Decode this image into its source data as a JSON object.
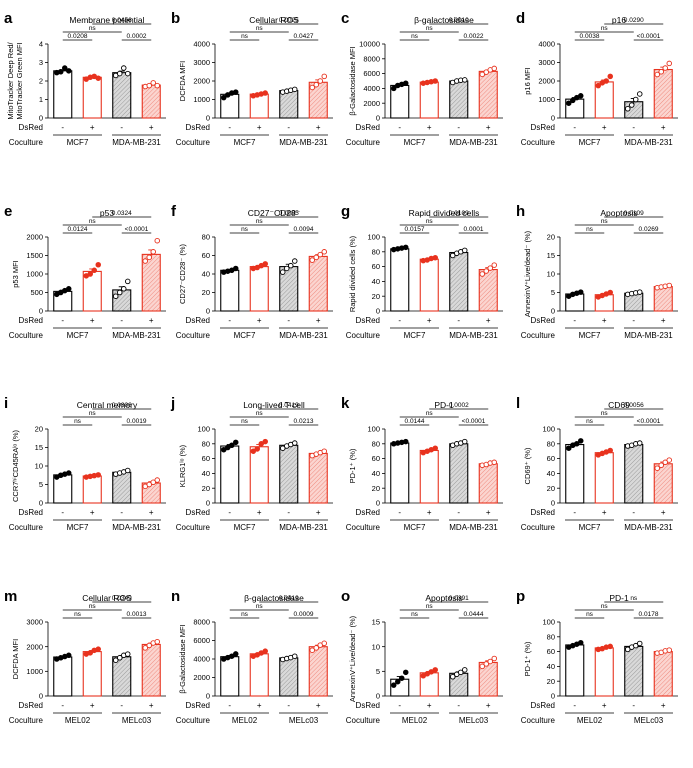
{
  "colors": {
    "black": "#000000",
    "red": "#e8321e",
    "grey_fill": "#dcdcdc",
    "red_fill": "#f7c6c0"
  },
  "row_labels": {
    "dsred": "DsRed",
    "coculture": "Coculture",
    "minus": "-",
    "plus": "+"
  },
  "chart_data": [
    {
      "panel": "a",
      "type": "bar",
      "title": "Membrane potential",
      "ylabel_lines": [
        "MitoTracker Deep Red/",
        "MitoTracker Green MFI"
      ],
      "ylim": [
        0,
        4
      ],
      "yticks": [
        "0",
        "1",
        "2",
        "3",
        "4"
      ],
      "cells": [
        "MCF7",
        "MDA-MB-231"
      ],
      "values": [
        2.55,
        2.2,
        2.45,
        1.78
      ],
      "points": [
        [
          2.45,
          2.5,
          2.7,
          2.55
        ],
        [
          2.1,
          2.2,
          2.25,
          2.15
        ],
        [
          2.3,
          2.4,
          2.7,
          2.4
        ],
        [
          1.7,
          1.75,
          1.9,
          1.75
        ]
      ],
      "sig": [
        {
          "a": 0,
          "b": 1,
          "text": "0.0208"
        },
        {
          "a": 2,
          "b": 3,
          "text": "0.0002"
        },
        {
          "a": 0,
          "b": 2,
          "text": "ns"
        },
        {
          "a": 1,
          "b": 3,
          "text": "0.0456"
        }
      ]
    },
    {
      "panel": "b",
      "type": "bar",
      "title": "Cellular ROS",
      "ylabel_lines": [
        "DCFDA  MFI"
      ],
      "ylim": [
        0,
        4000
      ],
      "yticks": [
        "0",
        "1000",
        "2000",
        "3000",
        "4000"
      ],
      "cells": [
        "MCF7",
        "MDA-MB-231"
      ],
      "values": [
        1280,
        1290,
        1480,
        1930
      ],
      "points": [
        [
          1100,
          1250,
          1350,
          1400
        ],
        [
          1200,
          1250,
          1300,
          1350
        ],
        [
          1400,
          1450,
          1500,
          1550
        ],
        [
          1650,
          1800,
          2000,
          2250
        ]
      ],
      "sig": [
        {
          "a": 0,
          "b": 1,
          "text": "ns"
        },
        {
          "a": 2,
          "b": 3,
          "text": "0.0427"
        },
        {
          "a": 0,
          "b": 2,
          "text": "ns"
        },
        {
          "a": 1,
          "b": 3,
          "text": "0.0025"
        }
      ]
    },
    {
      "panel": "c",
      "type": "bar",
      "title": "β-galactosidase",
      "ylabel_lines": [
        "β-Galactosidase  MFI"
      ],
      "ylim": [
        0,
        10000
      ],
      "yticks": [
        "0",
        "2000",
        "4000",
        "6000",
        "8000",
        "10000"
      ],
      "cells": [
        "MCF7",
        "MDA-MB-231"
      ],
      "values": [
        4400,
        4850,
        5000,
        6300
      ],
      "points": [
        [
          4000,
          4400,
          4550,
          4700
        ],
        [
          4700,
          4800,
          4900,
          5000
        ],
        [
          4800,
          5000,
          5100,
          5150
        ],
        [
          5900,
          6200,
          6500,
          6700
        ]
      ],
      "sig": [
        {
          "a": 0,
          "b": 1,
          "text": "ns"
        },
        {
          "a": 2,
          "b": 3,
          "text": "0.0022"
        },
        {
          "a": 0,
          "b": 2,
          "text": "ns"
        },
        {
          "a": 1,
          "b": 3,
          "text": "0.0010"
        }
      ]
    },
    {
      "panel": "d",
      "type": "bar",
      "title": "p16",
      "ylabel_lines": [
        "p16  MFI"
      ],
      "ylim": [
        0,
        4000
      ],
      "yticks": [
        "0",
        "1000",
        "2000",
        "3000",
        "4000"
      ],
      "cells": [
        "MCF7",
        "MDA-MB-231"
      ],
      "values": [
        1020,
        1950,
        880,
        2620
      ],
      "points": [
        [
          800,
          950,
          1100,
          1200
        ],
        [
          1750,
          1900,
          2000,
          2250
        ],
        [
          500,
          700,
          1000,
          1300
        ],
        [
          2350,
          2500,
          2700,
          2950
        ]
      ],
      "sig": [
        {
          "a": 0,
          "b": 1,
          "text": "0.0038"
        },
        {
          "a": 2,
          "b": 3,
          "text": "<0.0001"
        },
        {
          "a": 0,
          "b": 2,
          "text": "ns"
        },
        {
          "a": 1,
          "b": 3,
          "text": "0.0290"
        }
      ]
    },
    {
      "panel": "e",
      "type": "bar",
      "title": "p53",
      "ylabel_lines": [
        "p53  MFI"
      ],
      "ylim": [
        0,
        2000
      ],
      "yticks": [
        "0",
        "500",
        "1000",
        "1500",
        "2000"
      ],
      "cells": [
        "MCF7",
        "MDA-MB-231"
      ],
      "values": [
        530,
        1070,
        570,
        1530
      ],
      "points": [
        [
          450,
          500,
          550,
          600
        ],
        [
          950,
          1000,
          1100,
          1250
        ],
        [
          400,
          500,
          600,
          800
        ],
        [
          1350,
          1450,
          1600,
          1900
        ]
      ],
      "sig": [
        {
          "a": 0,
          "b": 1,
          "text": "0.0124"
        },
        {
          "a": 2,
          "b": 3,
          "text": "<0.0001"
        },
        {
          "a": 0,
          "b": 2,
          "text": "ns"
        },
        {
          "a": 1,
          "b": 3,
          "text": "0.0324"
        }
      ]
    },
    {
      "panel": "f",
      "type": "bar",
      "title": "CD27⁻CD28⁻",
      "ylabel_lines": [
        "CD27⁻CD28⁻ (%)"
      ],
      "ylim": [
        0,
        80
      ],
      "yticks": [
        "0",
        "20",
        "40",
        "60",
        "80"
      ],
      "cells": [
        "MCF7",
        "MDA-MB-231"
      ],
      "values": [
        44,
        48,
        48,
        59
      ],
      "points": [
        [
          42,
          43,
          44,
          46
        ],
        [
          46,
          47,
          49,
          51
        ],
        [
          42,
          46,
          49,
          54
        ],
        [
          55,
          58,
          61,
          64
        ]
      ],
      "sig": [
        {
          "a": 0,
          "b": 1,
          "text": "ns"
        },
        {
          "a": 2,
          "b": 3,
          "text": "0.0094"
        },
        {
          "a": 0,
          "b": 2,
          "text": "ns"
        },
        {
          "a": 1,
          "b": 3,
          "text": "0.0095"
        }
      ]
    },
    {
      "panel": "g",
      "type": "bar",
      "title": "Rapid divided cells",
      "ylabel_lines": [
        "Rapid divided cells (%)"
      ],
      "ylim": [
        0,
        100
      ],
      "yticks": [
        "0",
        "20",
        "40",
        "60",
        "80",
        "100"
      ],
      "cells": [
        "MCF7",
        "MDA-MB-231"
      ],
      "values": [
        84,
        70,
        79,
        56
      ],
      "points": [
        [
          83,
          84,
          85,
          86
        ],
        [
          68,
          69,
          71,
          72
        ],
        [
          75,
          78,
          80,
          82
        ],
        [
          50,
          54,
          58,
          62
        ]
      ],
      "sig": [
        {
          "a": 0,
          "b": 1,
          "text": "0.0157"
        },
        {
          "a": 2,
          "b": 3,
          "text": "0.0001"
        },
        {
          "a": 0,
          "b": 2,
          "text": "ns"
        },
        {
          "a": 1,
          "b": 3,
          "text": "0.0109"
        }
      ]
    },
    {
      "panel": "h",
      "type": "bar",
      "title": "Apoptosis",
      "ylabel_lines": [
        "AnnexinV⁺Live/dead⁻ (%)"
      ],
      "ylim": [
        0,
        20
      ],
      "yticks": [
        "0",
        "5",
        "10",
        "15",
        "20"
      ],
      "cells": [
        "MCF7",
        "MDA-MB-231"
      ],
      "values": [
        4.6,
        4.4,
        4.8,
        6.6
      ],
      "points": [
        [
          4.0,
          4.5,
          4.8,
          5.1
        ],
        [
          3.8,
          4.2,
          4.6,
          5.0
        ],
        [
          4.5,
          4.7,
          4.9,
          5.1
        ],
        [
          6.3,
          6.5,
          6.7,
          6.9
        ]
      ],
      "sig": [
        {
          "a": 0,
          "b": 1,
          "text": "ns"
        },
        {
          "a": 2,
          "b": 3,
          "text": "0.0269"
        },
        {
          "a": 0,
          "b": 2,
          "text": "ns"
        },
        {
          "a": 1,
          "b": 3,
          "text": "0.0109"
        }
      ]
    },
    {
      "panel": "i",
      "type": "bar",
      "title": "Central memory",
      "ylabel_lines": [
        "CCR7ʰⁱCD45RAˡᵒ (%)"
      ],
      "ylim": [
        0,
        20
      ],
      "yticks": [
        "0",
        "5",
        "10",
        "15",
        "20"
      ],
      "cells": [
        "MCF7",
        "MDA-MB-231"
      ],
      "values": [
        7.6,
        7.3,
        8.3,
        5.4
      ],
      "points": [
        [
          7.0,
          7.5,
          7.8,
          8.1
        ],
        [
          7.0,
          7.2,
          7.4,
          7.6
        ],
        [
          7.8,
          8.1,
          8.4,
          8.8
        ],
        [
          4.5,
          5.0,
          5.6,
          6.2
        ]
      ],
      "sig": [
        {
          "a": 0,
          "b": 1,
          "text": "ns"
        },
        {
          "a": 2,
          "b": 3,
          "text": "0.0019"
        },
        {
          "a": 0,
          "b": 2,
          "text": "ns"
        },
        {
          "a": 1,
          "b": 3,
          "text": "0.0306"
        }
      ]
    },
    {
      "panel": "j",
      "type": "bar",
      "title": "Long-lived T cell",
      "ylabel_lines": [
        "KLRG1ˡᵒ (%)"
      ],
      "ylim": [
        0,
        100
      ],
      "yticks": [
        "0",
        "20",
        "40",
        "60",
        "80",
        "100"
      ],
      "cells": [
        "MCF7",
        "MDA-MB-231"
      ],
      "values": [
        77,
        76,
        78,
        67
      ],
      "points": [
        [
          72,
          75,
          78,
          82
        ],
        [
          70,
          73,
          80,
          83
        ],
        [
          74,
          77,
          79,
          81
        ],
        [
          64,
          66,
          68,
          70
        ]
      ],
      "sig": [
        {
          "a": 0,
          "b": 1,
          "text": "ns"
        },
        {
          "a": 2,
          "b": 3,
          "text": "0.0213"
        },
        {
          "a": 0,
          "b": 2,
          "text": "ns"
        },
        {
          "a": 1,
          "b": 3,
          "text": "0.0419"
        }
      ]
    },
    {
      "panel": "k",
      "type": "bar",
      "title": "PD-1",
      "ylabel_lines": [
        "PD-1⁺ (%)"
      ],
      "ylim": [
        0,
        100
      ],
      "yticks": [
        "0",
        "20",
        "40",
        "60",
        "80",
        "100"
      ],
      "cells": [
        "MCF7",
        "MDA-MB-231"
      ],
      "values": [
        81,
        71,
        80,
        53
      ],
      "points": [
        [
          80,
          81,
          82,
          83
        ],
        [
          68,
          70,
          72,
          74
        ],
        [
          78,
          80,
          81,
          83
        ],
        [
          51,
          52,
          54,
          55
        ]
      ],
      "sig": [
        {
          "a": 0,
          "b": 1,
          "text": "0.0144"
        },
        {
          "a": 2,
          "b": 3,
          "text": "<0.0001"
        },
        {
          "a": 0,
          "b": 2,
          "text": "ns"
        },
        {
          "a": 1,
          "b": 3,
          "text": "0.0002"
        }
      ]
    },
    {
      "panel": "l",
      "type": "bar",
      "title": "CD69",
      "ylabel_lines": [
        "CD69⁺ (%)"
      ],
      "ylim": [
        0,
        100
      ],
      "yticks": [
        "0",
        "20",
        "40",
        "60",
        "80",
        "100"
      ],
      "cells": [
        "MCF7",
        "MDA-MB-231"
      ],
      "values": [
        79,
        68,
        79,
        53
      ],
      "points": [
        [
          74,
          78,
          80,
          84
        ],
        [
          65,
          67,
          69,
          71
        ],
        [
          77,
          78,
          80,
          81
        ],
        [
          47,
          51,
          55,
          58
        ]
      ],
      "sig": [
        {
          "a": 0,
          "b": 1,
          "text": "ns"
        },
        {
          "a": 2,
          "b": 3,
          "text": "<0.0001"
        },
        {
          "a": 0,
          "b": 2,
          "text": "ns"
        },
        {
          "a": 1,
          "b": 3,
          "text": "0.0056"
        }
      ]
    },
    {
      "panel": "m",
      "type": "bar",
      "title": "Cellular ROS",
      "ylabel_lines": [
        "DCFDA  MFI"
      ],
      "ylim": [
        0,
        3000
      ],
      "yticks": [
        "0",
        "1000",
        "2000",
        "3000"
      ],
      "cells": [
        "MEL02",
        "MELc03"
      ],
      "values": [
        1580,
        1800,
        1590,
        2090
      ],
      "points": [
        [
          1500,
          1550,
          1600,
          1650
        ],
        [
          1700,
          1750,
          1850,
          1900
        ],
        [
          1450,
          1550,
          1650,
          1700
        ],
        [
          1950,
          2050,
          2150,
          2200
        ]
      ],
      "sig": [
        {
          "a": 0,
          "b": 1,
          "text": "ns"
        },
        {
          "a": 2,
          "b": 3,
          "text": "0.0013"
        },
        {
          "a": 0,
          "b": 2,
          "text": "ns"
        },
        {
          "a": 1,
          "b": 3,
          "text": "0.0349"
        }
      ]
    },
    {
      "panel": "n",
      "type": "bar",
      "title": "β-galactosidase",
      "ylabel_lines": [
        "β-Galactosidase  MFI"
      ],
      "ylim": [
        0,
        8000
      ],
      "yticks": [
        "0",
        "2000",
        "4000",
        "6000",
        "8000"
      ],
      "cells": [
        "MEL02",
        "MELc03"
      ],
      "values": [
        4250,
        4560,
        4120,
        5330
      ],
      "points": [
        [
          4000,
          4150,
          4300,
          4550
        ],
        [
          4300,
          4450,
          4650,
          4850
        ],
        [
          3950,
          4050,
          4150,
          4300
        ],
        [
          4950,
          5200,
          5500,
          5700
        ]
      ],
      "sig": [
        {
          "a": 0,
          "b": 1,
          "text": "ns"
        },
        {
          "a": 2,
          "b": 3,
          "text": "0.0009"
        },
        {
          "a": 0,
          "b": 2,
          "text": "ns"
        },
        {
          "a": 1,
          "b": 3,
          "text": "0.0419"
        }
      ]
    },
    {
      "panel": "o",
      "type": "bar",
      "title": "Apoptosis",
      "ylabel_lines": [
        "AnnexinV⁺Live/dead⁻ (%)"
      ],
      "ylim": [
        0,
        15
      ],
      "yticks": [
        "0",
        "5",
        "10",
        "15"
      ],
      "cells": [
        "MEL02",
        "MELc03"
      ],
      "values": [
        3.4,
        4.7,
        4.6,
        6.8
      ],
      "points": [
        [
          2.2,
          2.9,
          3.6,
          4.8
        ],
        [
          4.1,
          4.5,
          4.9,
          5.3
        ],
        [
          3.9,
          4.4,
          4.8,
          5.3
        ],
        [
          6.0,
          6.5,
          7.0,
          7.6
        ]
      ],
      "sig": [
        {
          "a": 0,
          "b": 1,
          "text": "ns"
        },
        {
          "a": 2,
          "b": 3,
          "text": "0.0444"
        },
        {
          "a": 0,
          "b": 2,
          "text": "ns"
        },
        {
          "a": 1,
          "b": 3,
          "text": "0.0391"
        }
      ]
    },
    {
      "panel": "p",
      "type": "bar",
      "title": "PD-1",
      "ylabel_lines": [
        "PD-1⁺ (%)"
      ],
      "ylim": [
        0,
        100
      ],
      "yticks": [
        "0",
        "20",
        "40",
        "60",
        "80",
        "100"
      ],
      "cells": [
        "MEL02",
        "MELc03"
      ],
      "values": [
        69,
        65,
        67,
        60
      ],
      "points": [
        [
          66,
          68,
          70,
          72
        ],
        [
          63,
          64,
          66,
          67
        ],
        [
          63,
          66,
          68,
          71
        ],
        [
          58,
          59,
          61,
          62
        ]
      ],
      "sig": [
        {
          "a": 0,
          "b": 1,
          "text": "ns"
        },
        {
          "a": 2,
          "b": 3,
          "text": "0.0178"
        },
        {
          "a": 0,
          "b": 2,
          "text": "ns"
        },
        {
          "a": 1,
          "b": 3,
          "text": "ns"
        }
      ]
    }
  ]
}
